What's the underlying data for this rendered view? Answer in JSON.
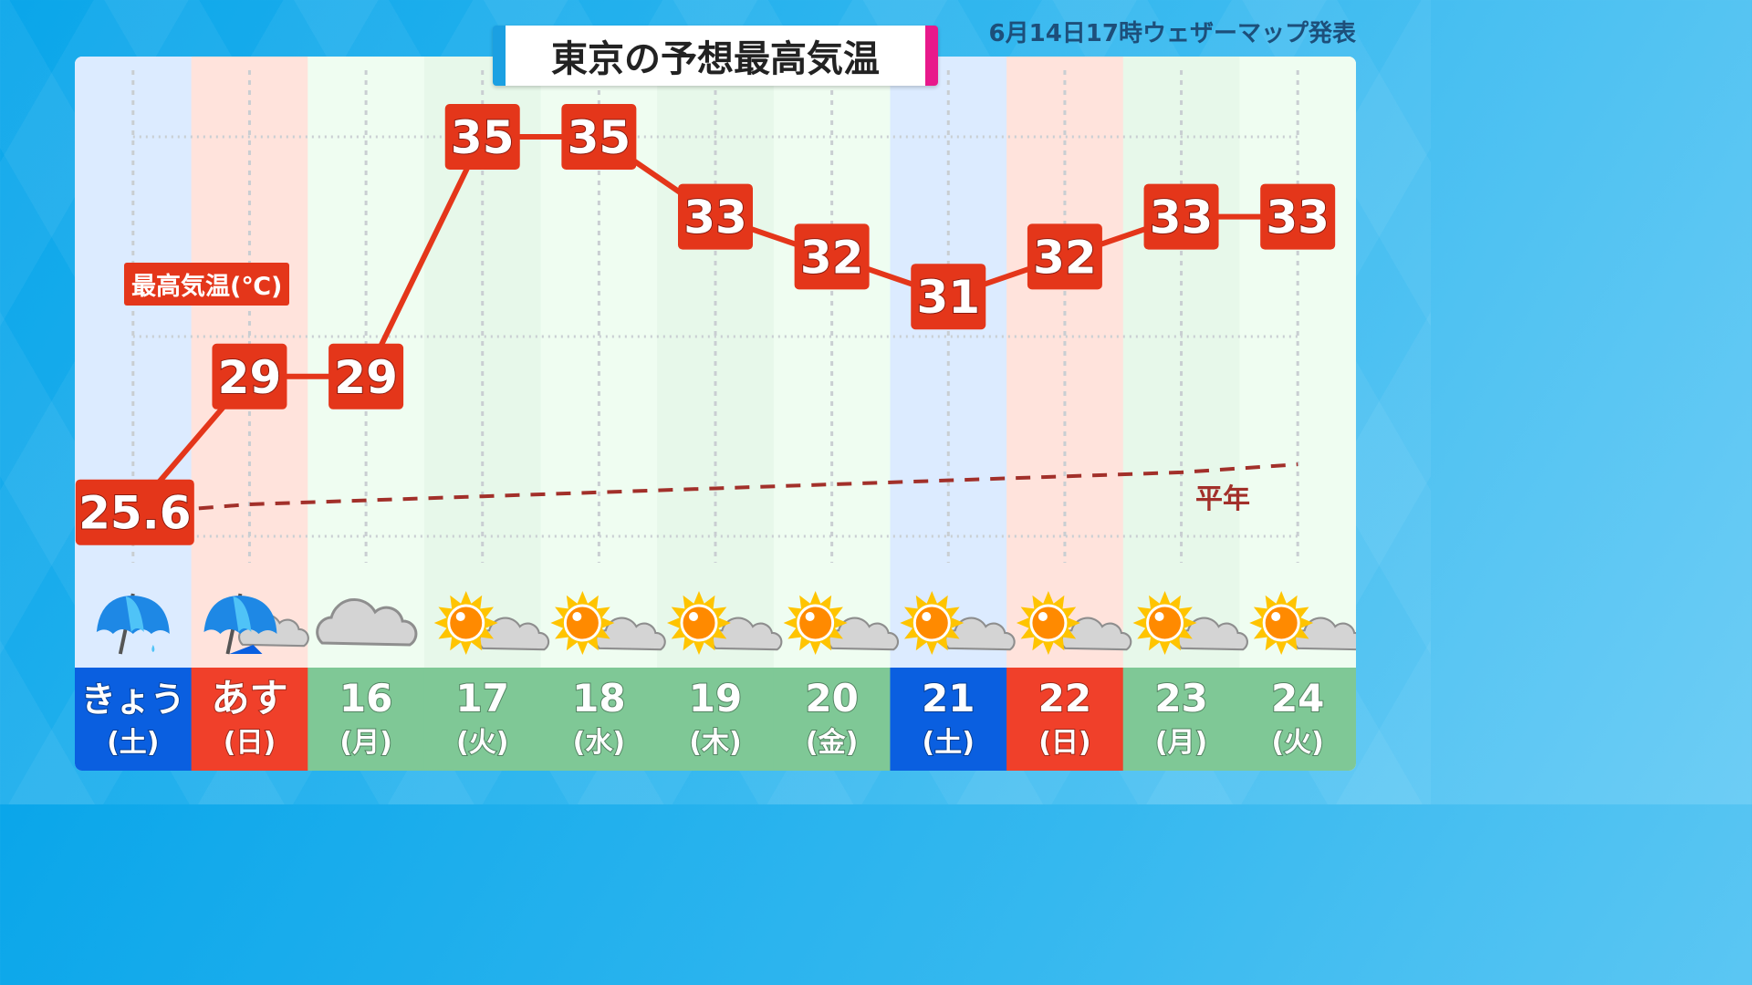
{
  "title": "東京の予想最高気温",
  "issued": "6月14日17時ウェザーマップ発表",
  "colors": {
    "line": "#e4361a",
    "normal": "#a2302a",
    "weekday_bg": "#7fc896",
    "saturday_bg": "#0a5fe0",
    "sunday_bg": "#f0402a"
  },
  "chart_data": {
    "type": "line",
    "title": "東京の予想最高気温",
    "ylabel": "最高気温(℃)",
    "ylim": [
      23.5,
      37
    ],
    "grid": true,
    "days": [
      {
        "date": "きょう",
        "dow": "(土)",
        "kind": "sat",
        "weather": "rain",
        "high": 25.6,
        "high_label": "25.6"
      },
      {
        "date": "あす",
        "dow": "(日)",
        "kind": "sun",
        "weather": "rain-then-cloud",
        "high": 29,
        "high_label": "29"
      },
      {
        "date": "16",
        "dow": "(月)",
        "kind": "weekday",
        "weather": "cloudy",
        "high": 29,
        "high_label": "29"
      },
      {
        "date": "17",
        "dow": "(火)",
        "kind": "weekday",
        "weather": "sunny-cloudy",
        "high": 35,
        "high_label": "35"
      },
      {
        "date": "18",
        "dow": "(水)",
        "kind": "weekday",
        "weather": "sunny-cloudy",
        "high": 35,
        "high_label": "35"
      },
      {
        "date": "19",
        "dow": "(木)",
        "kind": "weekday",
        "weather": "sunny-cloudy",
        "high": 33,
        "high_label": "33"
      },
      {
        "date": "20",
        "dow": "(金)",
        "kind": "weekday",
        "weather": "sunny-cloudy",
        "high": 32,
        "high_label": "32"
      },
      {
        "date": "21",
        "dow": "(土)",
        "kind": "sat",
        "weather": "sunny-cloudy",
        "high": 31,
        "high_label": "31"
      },
      {
        "date": "22",
        "dow": "(日)",
        "kind": "sun",
        "weather": "sunny-cloudy",
        "high": 32,
        "high_label": "32"
      },
      {
        "date": "23",
        "dow": "(月)",
        "kind": "weekday",
        "weather": "sunny-cloudy",
        "high": 33,
        "high_label": "33"
      },
      {
        "date": "24",
        "dow": "(火)",
        "kind": "weekday",
        "weather": "sunny-cloudy",
        "high": 33,
        "high_label": "33"
      }
    ],
    "normal": {
      "name": "平年",
      "values": [
        25.7,
        25.8,
        25.9,
        26.0,
        26.1,
        26.2,
        26.3,
        26.4,
        26.5,
        26.6,
        26.8
      ]
    }
  }
}
